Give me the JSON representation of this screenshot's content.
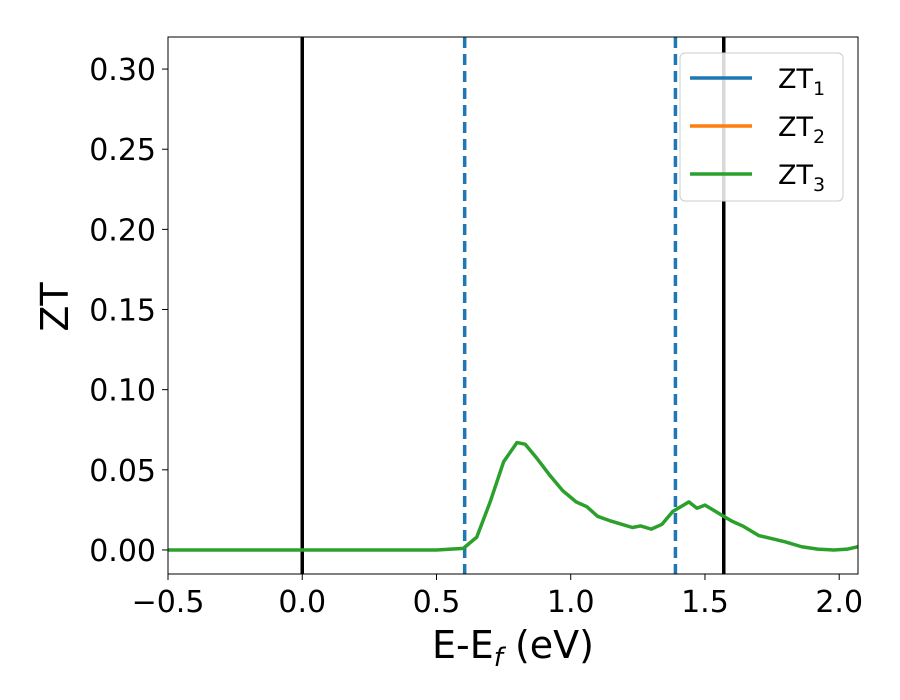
{
  "chart_data": {
    "type": "line",
    "xlabel": "E-E",
    "xlabel_sub": "f",
    "xlabel_unit": " (eV)",
    "ylabel": "ZT",
    "xlim": [
      -0.5,
      2.07
    ],
    "ylim": [
      -0.015,
      0.32
    ],
    "xticks": [
      -0.5,
      0.0,
      0.5,
      1.0,
      1.5,
      2.0
    ],
    "xtick_labels": [
      "−0.5",
      "0.0",
      "0.5",
      "1.0",
      "1.5",
      "2.0"
    ],
    "yticks": [
      0.0,
      0.05,
      0.1,
      0.15,
      0.2,
      0.25,
      0.3
    ],
    "ytick_labels": [
      "0.00",
      "0.05",
      "0.10",
      "0.15",
      "0.20",
      "0.25",
      "0.30"
    ],
    "grid": false,
    "legend_position": "upper right",
    "vertical_lines": [
      {
        "x": 0.0,
        "style": "solid",
        "color": "#000000"
      },
      {
        "x": 0.605,
        "style": "dashed",
        "color": "#1f77b4"
      },
      {
        "x": 1.39,
        "style": "dashed",
        "color": "#1f77b4"
      },
      {
        "x": 1.57,
        "style": "solid",
        "color": "#000000"
      }
    ],
    "series": [
      {
        "name": "ZT",
        "sub": "1",
        "color": "#1f77b4",
        "x": [],
        "y": []
      },
      {
        "name": "ZT",
        "sub": "2",
        "color": "#ff7f0e",
        "x": [],
        "y": []
      },
      {
        "name": "ZT",
        "sub": "3",
        "color": "#2ca02c",
        "x": [
          -0.5,
          0.0,
          0.5,
          0.6,
          0.65,
          0.7,
          0.75,
          0.8,
          0.83,
          0.87,
          0.92,
          0.97,
          1.02,
          1.06,
          1.1,
          1.15,
          1.19,
          1.23,
          1.26,
          1.3,
          1.34,
          1.38,
          1.42,
          1.44,
          1.47,
          1.5,
          1.53,
          1.56,
          1.6,
          1.64,
          1.7,
          1.75,
          1.8,
          1.86,
          1.92,
          1.98,
          2.03,
          2.07
        ],
        "y": [
          0.0,
          0.0,
          0.0,
          0.001,
          0.008,
          0.03,
          0.055,
          0.067,
          0.066,
          0.058,
          0.047,
          0.037,
          0.03,
          0.027,
          0.021,
          0.018,
          0.016,
          0.014,
          0.015,
          0.013,
          0.016,
          0.024,
          0.028,
          0.03,
          0.026,
          0.028,
          0.025,
          0.022,
          0.018,
          0.015,
          0.009,
          0.007,
          0.005,
          0.002,
          0.0005,
          0.0,
          0.0005,
          0.002
        ]
      }
    ]
  }
}
